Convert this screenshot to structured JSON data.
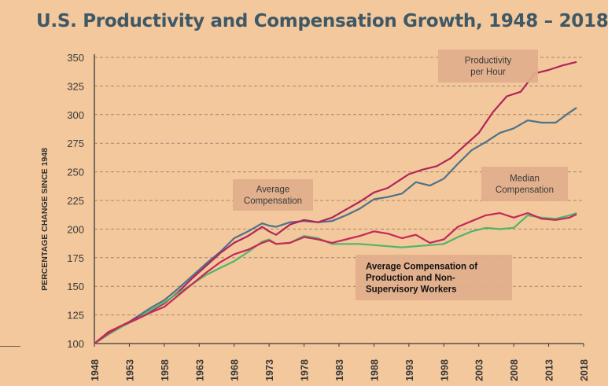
{
  "chart_data": {
    "type": "line",
    "title": "U.S. Productivity and Compensation Growth, 1948 – 2018",
    "ylabel": "PERCENTAGE CHANGE SINCE 1948",
    "xlabel": "",
    "ylim": [
      100,
      350
    ],
    "xlim": [
      1948,
      2018
    ],
    "yticks": [
      100,
      125,
      150,
      175,
      200,
      225,
      250,
      275,
      300,
      325,
      350
    ],
    "xticks": [
      1948,
      1953,
      1958,
      1963,
      1968,
      1973,
      1978,
      1983,
      1988,
      1993,
      1998,
      2003,
      2008,
      2013,
      2018
    ],
    "grid": "horizontal dashed",
    "series": [
      {
        "name": "Productivity per Hour",
        "color": "#b0245a",
        "x": [
          1948,
          1950,
          1952,
          1954,
          1956,
          1958,
          1960,
          1962,
          1964,
          1966,
          1968,
          1970,
          1972,
          1973,
          1974,
          1976,
          1978,
          1980,
          1982,
          1984,
          1986,
          1988,
          1990,
          1992,
          1993,
          1995,
          1997,
          1999,
          2001,
          2003,
          2005,
          2007,
          2009,
          2011,
          2013,
          2015,
          2017
        ],
        "y": [
          100,
          110,
          116,
          122,
          128,
          135,
          145,
          157,
          168,
          179,
          188,
          194,
          202,
          198,
          195,
          204,
          208,
          206,
          210,
          217,
          224,
          232,
          236,
          244,
          248,
          252,
          255,
          262,
          273,
          284,
          302,
          316,
          320,
          336,
          339,
          343,
          346
        ]
      },
      {
        "name": "Average Compensation",
        "color": "#4d7289",
        "x": [
          1948,
          1950,
          1952,
          1954,
          1956,
          1958,
          1960,
          1962,
          1964,
          1966,
          1968,
          1970,
          1972,
          1973,
          1974,
          1976,
          1978,
          1980,
          1982,
          1984,
          1986,
          1988,
          1990,
          1992,
          1994,
          1996,
          1998,
          2000,
          2002,
          2004,
          2006,
          2008,
          2010,
          2012,
          2014,
          2016,
          2017
        ],
        "y": [
          100,
          109,
          115,
          123,
          131,
          138,
          148,
          159,
          170,
          180,
          192,
          198,
          205,
          203,
          202,
          206,
          207,
          206,
          207,
          212,
          218,
          226,
          228,
          231,
          241,
          238,
          244,
          257,
          269,
          276,
          284,
          288,
          295,
          293,
          293,
          302,
          306
        ]
      },
      {
        "name": "Median Compensation",
        "color": "#c5285a",
        "x": [
          1948,
          1950,
          1952,
          1954,
          1956,
          1958,
          1960,
          1962,
          1964,
          1966,
          1968,
          1970,
          1972,
          1973,
          1974,
          1976,
          1978,
          1980,
          1982,
          1984,
          1986,
          1988,
          1990,
          1992,
          1994,
          1996,
          1998,
          2000,
          2002,
          2004,
          2006,
          2008,
          2010,
          2012,
          2014,
          2016,
          2017
        ],
        "y": [
          100,
          109,
          116,
          121,
          127,
          132,
          142,
          152,
          162,
          171,
          178,
          182,
          188,
          190,
          187,
          188,
          193,
          191,
          188,
          191,
          194,
          198,
          196,
          192,
          195,
          188,
          191,
          202,
          207,
          212,
          214,
          210,
          214,
          209,
          208,
          210,
          213
        ]
      },
      {
        "name": "Average Compensation of Production and Non-Supervisory Workers",
        "color": "#4fb56b",
        "x": [
          1948,
          1950,
          1952,
          1954,
          1956,
          1958,
          1960,
          1962,
          1964,
          1966,
          1968,
          1970,
          1972,
          1973,
          1974,
          1976,
          1978,
          1980,
          1982,
          1984,
          1986,
          1988,
          1990,
          1992,
          1994,
          1996,
          1998,
          2000,
          2002,
          2004,
          2006,
          2008,
          2010,
          2012,
          2014,
          2016,
          2017
        ],
        "y": [
          100,
          108,
          115,
          121,
          129,
          136,
          144,
          152,
          160,
          166,
          172,
          180,
          189,
          191,
          187,
          188,
          194,
          192,
          187,
          187,
          187,
          186,
          185,
          184,
          185,
          186,
          187,
          193,
          198,
          201,
          200,
          201,
          212,
          210,
          209,
          212,
          214
        ]
      }
    ],
    "annotations": [
      {
        "key": "productivity",
        "lines": [
          "Productivity",
          "per Hour"
        ]
      },
      {
        "key": "avg_comp",
        "lines": [
          "Average",
          "Compensation"
        ]
      },
      {
        "key": "median_comp",
        "lines": [
          "Median",
          "Compensation"
        ]
      },
      {
        "key": "workers",
        "lines": [
          "Average Compensation of",
          "Production and Non-",
          "Supervisory Workers"
        ]
      }
    ],
    "colors": {
      "background": "#f3c89c",
      "title": "#3f5866",
      "axis": "#3a3a3a",
      "annotation_box": "#e1ae8b",
      "annotation_text": "#3b3b3b",
      "workers_text": "#111111"
    }
  }
}
